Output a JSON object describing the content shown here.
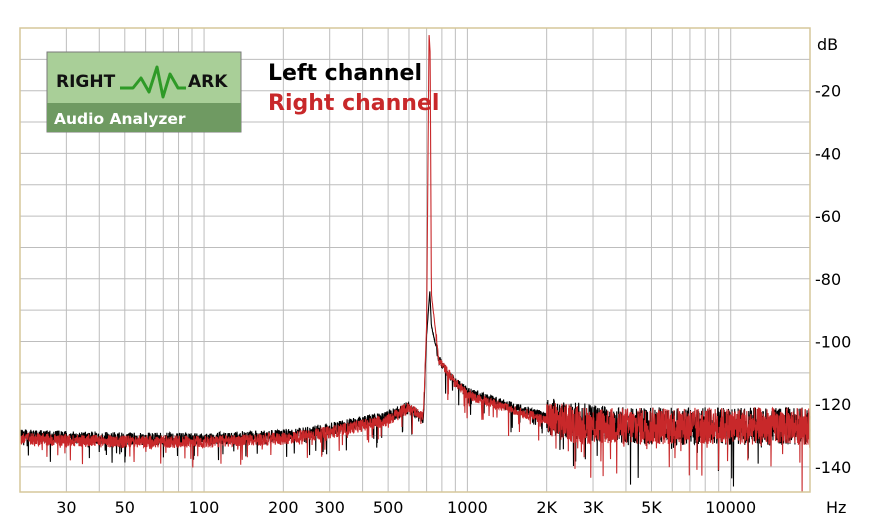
{
  "logo": {
    "word1": "RIGHT",
    "word2": "ARK",
    "subtitle": "Audio Analyzer",
    "bg": "#a9cf98",
    "band": "#6f9a62",
    "wave": "#2e9a27"
  },
  "chart_data": {
    "type": "line",
    "title": "",
    "xlabel": "Hz",
    "ylabel": "dB",
    "xscale": "log",
    "xlim": [
      20,
      20000
    ],
    "ylim": [
      -148,
      0
    ],
    "grid": true,
    "legend_position": "top-left",
    "x_ticks": [
      {
        "v": 30,
        "label": "30"
      },
      {
        "v": 50,
        "label": "50"
      },
      {
        "v": 100,
        "label": "100"
      },
      {
        "v": 200,
        "label": "200"
      },
      {
        "v": 300,
        "label": "300"
      },
      {
        "v": 500,
        "label": "500"
      },
      {
        "v": 1000,
        "label": "1000"
      },
      {
        "v": 2000,
        "label": "2K"
      },
      {
        "v": 3000,
        "label": "3K"
      },
      {
        "v": 5000,
        "label": "5K"
      },
      {
        "v": 10000,
        "label": "10000"
      }
    ],
    "y_ticks": [
      {
        "v": -20,
        "label": "-20"
      },
      {
        "v": -40,
        "label": "-40"
      },
      {
        "v": -60,
        "label": "-60"
      },
      {
        "v": -80,
        "label": "-80"
      },
      {
        "v": -100,
        "label": "-100"
      },
      {
        "v": -120,
        "label": "-120"
      },
      {
        "v": -140,
        "label": "-140"
      }
    ],
    "series": [
      {
        "name": "Left channel",
        "color": "#000000",
        "points": [
          [
            20,
            -130
          ],
          [
            50,
            -131
          ],
          [
            100,
            -131
          ],
          [
            200,
            -130
          ],
          [
            300,
            -128
          ],
          [
            500,
            -124
          ],
          [
            600,
            -121
          ],
          [
            680,
            -125
          ],
          [
            700,
            -98
          ],
          [
            720,
            -84
          ],
          [
            730,
            -95
          ],
          [
            780,
            -106
          ],
          [
            900,
            -113
          ],
          [
            1000,
            -116
          ],
          [
            1500,
            -121
          ],
          [
            2000,
            -124
          ],
          [
            3000,
            -126
          ],
          [
            5000,
            -127
          ],
          [
            10000,
            -127
          ],
          [
            20000,
            -127
          ]
        ]
      },
      {
        "name": "Right channel",
        "color": "#c8282a",
        "points": [
          [
            20,
            -131
          ],
          [
            50,
            -132
          ],
          [
            100,
            -132
          ],
          [
            200,
            -131
          ],
          [
            300,
            -129
          ],
          [
            500,
            -125
          ],
          [
            600,
            -121
          ],
          [
            680,
            -124
          ],
          [
            700,
            -95
          ],
          [
            715,
            -2
          ],
          [
            722,
            -8
          ],
          [
            730,
            -85
          ],
          [
            780,
            -106
          ],
          [
            900,
            -113
          ],
          [
            1000,
            -117
          ],
          [
            1500,
            -122
          ],
          [
            2000,
            -125
          ],
          [
            3000,
            -127
          ],
          [
            5000,
            -127
          ],
          [
            10000,
            -127
          ],
          [
            20000,
            -127
          ]
        ]
      }
    ]
  }
}
